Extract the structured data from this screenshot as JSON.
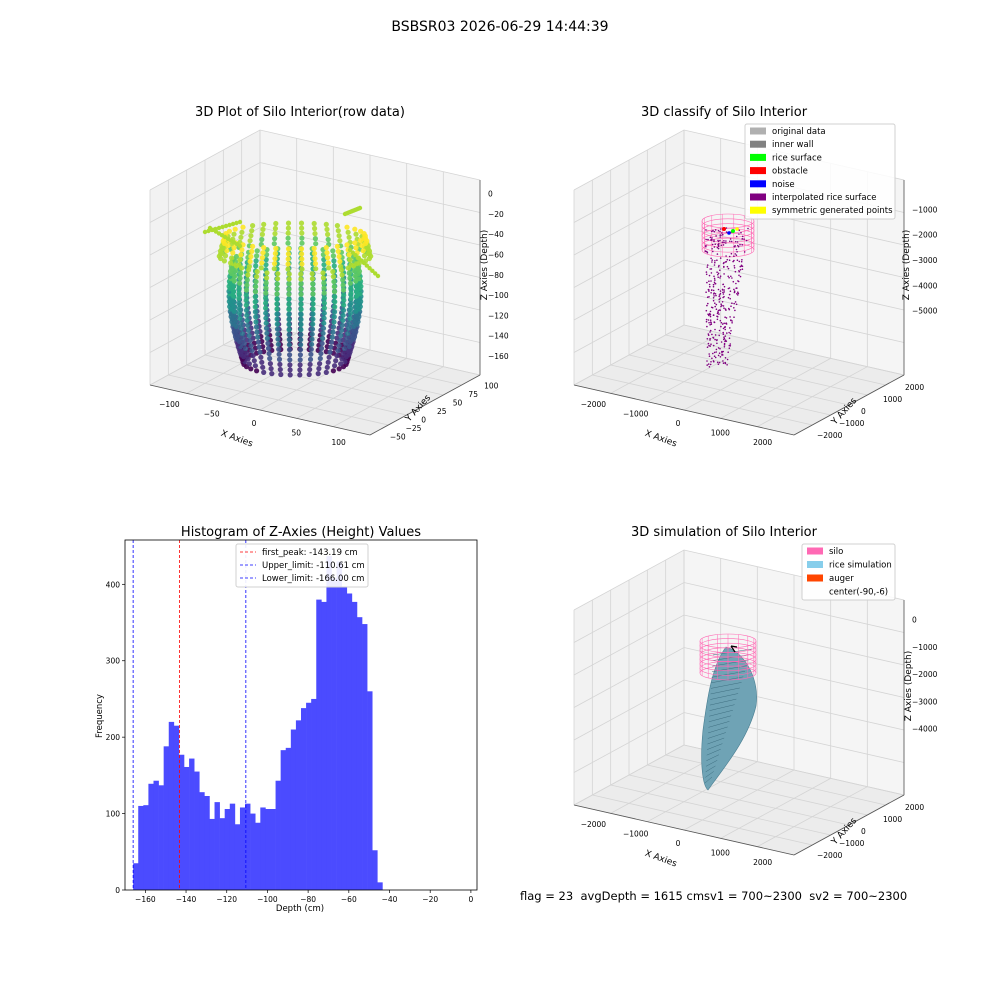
{
  "suptitle": "BSBSR03 2026-06-29 14:44:39",
  "status_text": "flag = 23  avgDepth = 1615 cmsv1 = 700~2300  sv2 = 700~2300",
  "chart_data": [
    {
      "type": "scatter3d",
      "title": "3D Plot of Silo Interior(row data)",
      "xlabel": "X Axies",
      "ylabel": "Y Axies",
      "zlabel": "Z Axies (Depth)",
      "x_ticks": [
        "−100",
        "−50",
        "0",
        "50",
        "100"
      ],
      "y_ticks": [
        "−50",
        "−25",
        "0",
        "25",
        "50",
        "75",
        "100"
      ],
      "z_ticks": [
        "0",
        "−20",
        "−40",
        "−60",
        "−80",
        "−100",
        "−120",
        "−140",
        "−160"
      ],
      "xlim": [
        -120,
        110
      ],
      "ylim": [
        -60,
        110
      ],
      "zlim": [
        -170,
        0
      ],
      "colormap": "viridis"
    },
    {
      "type": "scatter3d",
      "title": "3D classify of Silo Interior",
      "xlabel": "X Axies",
      "ylabel": "Y Axies",
      "zlabel": "Z Axies (Depth)",
      "x_ticks": [
        "−2000",
        "−1000",
        "0",
        "1000",
        "2000"
      ],
      "y_ticks": [
        "−2000",
        "−1000",
        "0",
        "1000",
        "2000"
      ],
      "z_ticks": [
        "−1000",
        "−2000",
        "−3000",
        "−4000",
        "−5000"
      ],
      "legend": [
        {
          "label": "original data",
          "color": "#b0b0b0"
        },
        {
          "label": "inner wall",
          "color": "#808080"
        },
        {
          "label": "rice surface",
          "color": "#00ff00"
        },
        {
          "label": "obstacle",
          "color": "#ff0000"
        },
        {
          "label": "noise",
          "color": "#0000ff"
        },
        {
          "label": "interpolated rice surface",
          "color": "#800080"
        },
        {
          "label": "symmetric generated points",
          "color": "#ffff00"
        }
      ]
    },
    {
      "type": "bar",
      "title": "Histogram of Z-Axies (Height) Values",
      "xlabel": "Depth (cm)",
      "ylabel": "Frequency",
      "bar_color": "#4b4bff",
      "xlim": [
        -170,
        3
      ],
      "ylim": [
        0,
        458
      ],
      "x_ticks": [
        -160,
        -140,
        -120,
        -100,
        -80,
        -60,
        -40,
        -20,
        0
      ],
      "y_ticks": [
        0,
        100,
        200,
        300,
        400
      ],
      "bin_start": -166,
      "bin_width": 2.5,
      "values": [
        35,
        110,
        111,
        139,
        143,
        137,
        188,
        220,
        215,
        177,
        161,
        172,
        155,
        128,
        123,
        93,
        115,
        94,
        106,
        113,
        86,
        108,
        113,
        100,
        88,
        108,
        106,
        106,
        143,
        183,
        186,
        210,
        222,
        238,
        245,
        250,
        380,
        377,
        437,
        408,
        430,
        396,
        388,
        377,
        357,
        348,
        260,
        52,
        10
      ],
      "vlines": [
        {
          "label": "first_peak: -143.19 cm",
          "x": -143.19,
          "color": "#ff0000"
        },
        {
          "label": "Upper_limit: -110.61 cm",
          "x": -110.61,
          "color": "#0000ff"
        },
        {
          "label": "Lower_limit: -166.00 cm",
          "x": -166.0,
          "color": "#0000ff"
        }
      ]
    },
    {
      "type": "surface3d",
      "title": "3D simulation of Silo Interior",
      "xlabel": "X Axies",
      "ylabel": "Y Axies",
      "zlabel": "Z Axies (Depth)",
      "x_ticks": [
        "−2000",
        "−1000",
        "0",
        "1000",
        "2000"
      ],
      "y_ticks": [
        "−2000",
        "−1000",
        "0",
        "1000",
        "2000"
      ],
      "z_ticks": [
        "0",
        "−1000",
        "−2000",
        "−3000",
        "−4000"
      ],
      "legend": [
        {
          "label": "silo",
          "color": "#ff69b4"
        },
        {
          "label": "rice simulation",
          "color": "#87ceeb"
        },
        {
          "label": "auger",
          "color": "#ff4500"
        },
        {
          "label": "center(-90,-6)",
          "color": "none"
        }
      ]
    }
  ]
}
